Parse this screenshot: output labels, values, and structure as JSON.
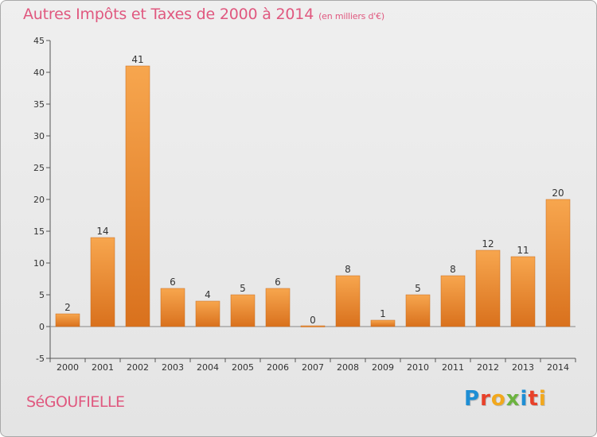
{
  "title": "Autres Impôts et Taxes de 2000 à 2014",
  "subtitle": "(en milliers d'€)",
  "commune": "SéGOUFIELLE",
  "logo": {
    "letters": [
      "P",
      "r",
      "o",
      "x",
      "i",
      "t",
      "i"
    ],
    "colors": [
      "#1e8ed4",
      "#e8412a",
      "#f2a81d",
      "#6cb33f",
      "#1e8ed4",
      "#e8412a",
      "#f2a81d"
    ]
  },
  "colors": {
    "bar_top": "#f7a64e",
    "bar_bottom": "#d9711d",
    "title": "#e0587f"
  },
  "chart_data": {
    "type": "bar",
    "title": "Autres Impôts et Taxes de 2000 à 2014",
    "subtitle": "(en milliers d'€)",
    "categories": [
      "2000",
      "2001",
      "2002",
      "2003",
      "2004",
      "2005",
      "2006",
      "2007",
      "2008",
      "2009",
      "2010",
      "2011",
      "2012",
      "2013",
      "2014"
    ],
    "values": [
      2,
      14,
      41,
      6,
      4,
      5,
      6,
      0,
      8,
      1,
      5,
      8,
      12,
      11,
      20
    ],
    "data_labels": [
      "2",
      "14",
      "41",
      "6",
      "4",
      "5",
      "6",
      "0",
      "8",
      "1",
      "5",
      "8",
      "12",
      "11",
      "20"
    ],
    "ylim": [
      -5,
      45
    ],
    "yticks": [
      -5,
      0,
      5,
      10,
      15,
      20,
      25,
      30,
      35,
      40,
      45
    ],
    "xlabel": "",
    "ylabel": "",
    "grid": false,
    "legend": "none"
  }
}
